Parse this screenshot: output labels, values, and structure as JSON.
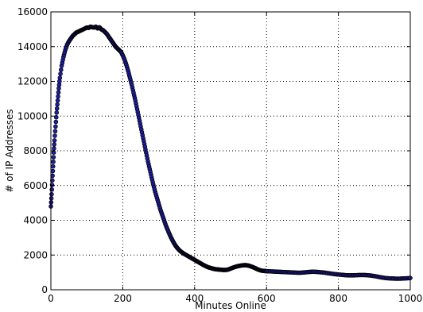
{
  "chart_data": {
    "type": "scatter",
    "title": "",
    "xlabel": "Minutes Online",
    "ylabel": "# of IP Addresses",
    "xlim": [
      0,
      1000
    ],
    "ylim": [
      0,
      16000
    ],
    "x_ticks": [
      0,
      200,
      400,
      600,
      800,
      1000
    ],
    "y_ticks": [
      0,
      2000,
      4000,
      6000,
      8000,
      10000,
      12000,
      14000,
      16000
    ],
    "grid": true,
    "legend": "none",
    "colors": {
      "marker_fill": "#1f1fa8",
      "marker_edge": "#000000",
      "grid": "#000000",
      "axis": "#000000"
    },
    "series": [
      {
        "points": [
          [
            0,
            4800
          ],
          [
            2,
            5500
          ],
          [
            4,
            6300
          ],
          [
            6,
            7100
          ],
          [
            8,
            7900
          ],
          [
            10,
            8600
          ],
          [
            13,
            9400
          ],
          [
            16,
            10200
          ],
          [
            19,
            10900
          ],
          [
            22,
            11600
          ],
          [
            25,
            12200
          ],
          [
            30,
            12900
          ],
          [
            35,
            13400
          ],
          [
            40,
            13800
          ],
          [
            45,
            14100
          ],
          [
            50,
            14300
          ],
          [
            55,
            14450
          ],
          [
            60,
            14600
          ],
          [
            65,
            14700
          ],
          [
            70,
            14800
          ],
          [
            75,
            14850
          ],
          [
            80,
            14900
          ],
          [
            85,
            14950
          ],
          [
            90,
            15000
          ],
          [
            95,
            15050
          ],
          [
            100,
            15100
          ],
          [
            105,
            15080
          ],
          [
            110,
            15150
          ],
          [
            115,
            15120
          ],
          [
            120,
            15100
          ],
          [
            125,
            15150
          ],
          [
            130,
            15050
          ],
          [
            135,
            15120
          ],
          [
            140,
            15000
          ],
          [
            145,
            14950
          ],
          [
            150,
            14850
          ],
          [
            155,
            14750
          ],
          [
            160,
            14600
          ],
          [
            165,
            14450
          ],
          [
            170,
            14300
          ],
          [
            175,
            14150
          ],
          [
            180,
            14000
          ],
          [
            185,
            13900
          ],
          [
            190,
            13800
          ],
          [
            195,
            13700
          ],
          [
            200,
            13500
          ],
          [
            205,
            13250
          ],
          [
            210,
            12950
          ],
          [
            215,
            12600
          ],
          [
            220,
            12200
          ],
          [
            225,
            11800
          ],
          [
            230,
            11350
          ],
          [
            235,
            10900
          ],
          [
            240,
            10400
          ],
          [
            245,
            9900
          ],
          [
            250,
            9400
          ],
          [
            255,
            8900
          ],
          [
            260,
            8400
          ],
          [
            265,
            7900
          ],
          [
            270,
            7400
          ],
          [
            275,
            6950
          ],
          [
            280,
            6500
          ],
          [
            285,
            6050
          ],
          [
            290,
            5650
          ],
          [
            295,
            5300
          ],
          [
            300,
            4950
          ],
          [
            305,
            4600
          ],
          [
            310,
            4300
          ],
          [
            315,
            4000
          ],
          [
            320,
            3700
          ],
          [
            325,
            3450
          ],
          [
            330,
            3200
          ],
          [
            335,
            2980
          ],
          [
            340,
            2780
          ],
          [
            345,
            2600
          ],
          [
            350,
            2450
          ],
          [
            355,
            2330
          ],
          [
            360,
            2230
          ],
          [
            365,
            2150
          ],
          [
            370,
            2080
          ],
          [
            375,
            2020
          ],
          [
            380,
            1960
          ],
          [
            385,
            1900
          ],
          [
            390,
            1840
          ],
          [
            395,
            1780
          ],
          [
            400,
            1720
          ],
          [
            405,
            1660
          ],
          [
            410,
            1600
          ],
          [
            415,
            1540
          ],
          [
            420,
            1480
          ],
          [
            425,
            1420
          ],
          [
            430,
            1370
          ],
          [
            435,
            1320
          ],
          [
            440,
            1280
          ],
          [
            445,
            1250
          ],
          [
            450,
            1220
          ],
          [
            455,
            1200
          ],
          [
            460,
            1180
          ],
          [
            465,
            1170
          ],
          [
            470,
            1160
          ],
          [
            475,
            1150
          ],
          [
            480,
            1140
          ],
          [
            485,
            1140
          ],
          [
            490,
            1150
          ],
          [
            495,
            1180
          ],
          [
            500,
            1220
          ],
          [
            505,
            1260
          ],
          [
            510,
            1300
          ],
          [
            515,
            1330
          ],
          [
            520,
            1360
          ],
          [
            525,
            1380
          ],
          [
            530,
            1400
          ],
          [
            535,
            1410
          ],
          [
            540,
            1420
          ],
          [
            545,
            1410
          ],
          [
            550,
            1390
          ],
          [
            555,
            1360
          ],
          [
            560,
            1320
          ],
          [
            565,
            1280
          ],
          [
            570,
            1230
          ],
          [
            575,
            1180
          ],
          [
            580,
            1140
          ],
          [
            585,
            1110
          ],
          [
            590,
            1090
          ],
          [
            595,
            1080
          ],
          [
            600,
            1070
          ],
          [
            610,
            1060
          ],
          [
            620,
            1050
          ],
          [
            630,
            1040
          ],
          [
            640,
            1030
          ],
          [
            650,
            1020
          ],
          [
            660,
            1010
          ],
          [
            670,
            1000
          ],
          [
            680,
            990
          ],
          [
            690,
            980
          ],
          [
            700,
            990
          ],
          [
            710,
            1010
          ],
          [
            720,
            1030
          ],
          [
            730,
            1040
          ],
          [
            740,
            1030
          ],
          [
            750,
            1010
          ],
          [
            760,
            990
          ],
          [
            770,
            960
          ],
          [
            780,
            930
          ],
          [
            790,
            900
          ],
          [
            800,
            880
          ],
          [
            810,
            860
          ],
          [
            820,
            840
          ],
          [
            830,
            830
          ],
          [
            840,
            830
          ],
          [
            850,
            840
          ],
          [
            860,
            850
          ],
          [
            870,
            850
          ],
          [
            880,
            840
          ],
          [
            890,
            820
          ],
          [
            900,
            790
          ],
          [
            910,
            750
          ],
          [
            920,
            710
          ],
          [
            930,
            680
          ],
          [
            940,
            660
          ],
          [
            950,
            650
          ],
          [
            960,
            640
          ],
          [
            970,
            640
          ],
          [
            980,
            650
          ],
          [
            990,
            660
          ],
          [
            1000,
            680
          ]
        ]
      }
    ]
  }
}
